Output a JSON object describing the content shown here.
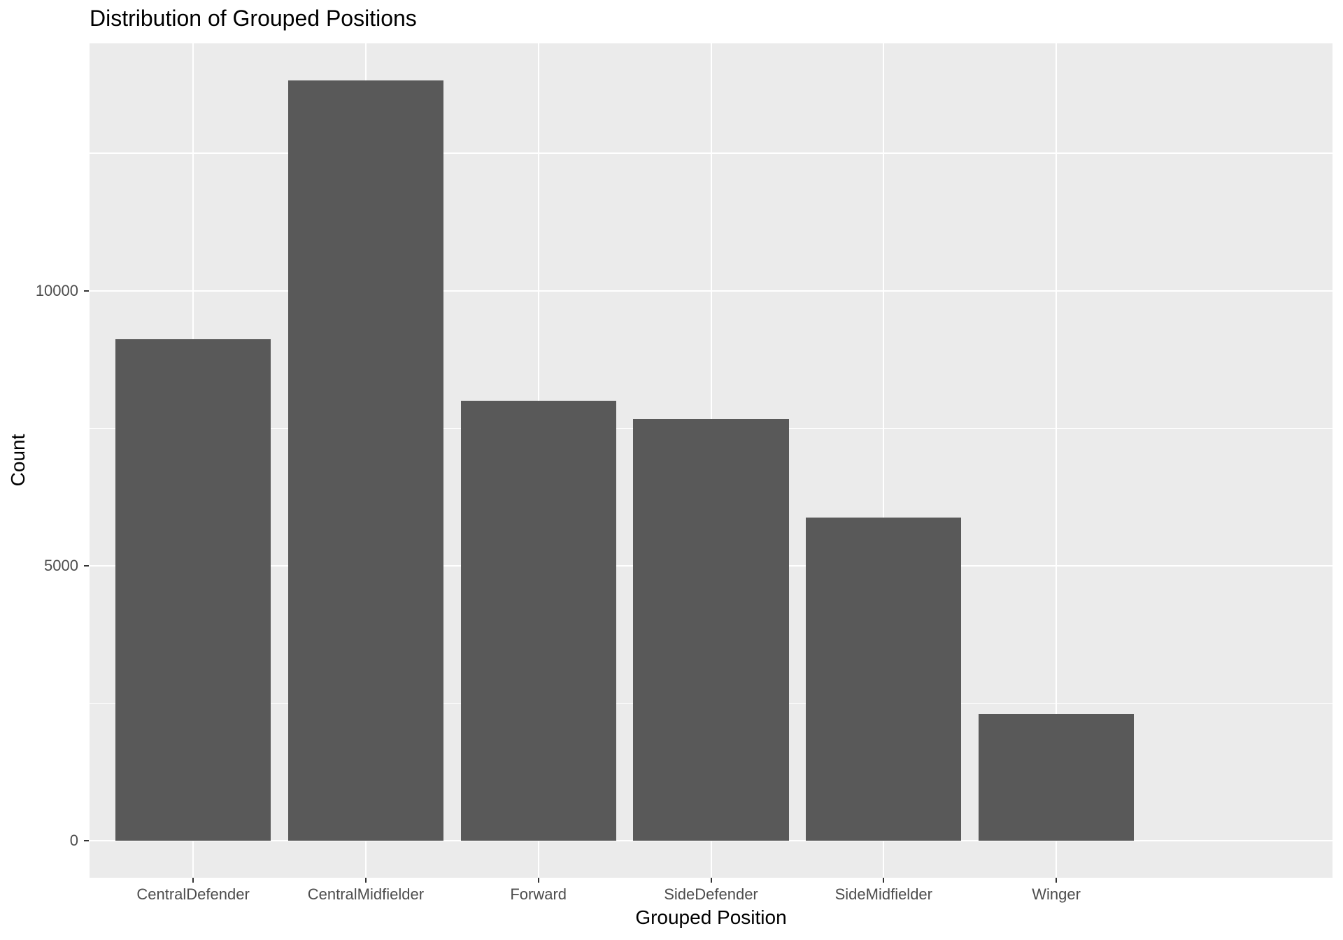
{
  "chart_data": {
    "type": "bar",
    "title": "Distribution of Grouped Positions",
    "xlabel": "Grouped Position",
    "ylabel": "Count",
    "categories": [
      "CentralDefender",
      "CentralMidfielder",
      "Forward",
      "SideDefender",
      "SideMidfielder",
      "Winger"
    ],
    "values": [
      9120,
      13820,
      8000,
      7670,
      5870,
      2300
    ],
    "y_major_ticks": [
      0,
      5000,
      10000
    ],
    "y_tick_labels": [
      "0",
      "5000",
      "10000"
    ],
    "y_minor_gridlines": [
      2500,
      7500,
      12500
    ],
    "ylim": [
      -675,
      14500
    ],
    "grid": true,
    "legend": "none",
    "bar_width_fraction": 0.9,
    "colors": {
      "bar_fill": "#595959",
      "panel_background": "#EBEBEB",
      "gridline": "#FFFFFF",
      "axis_text": "#4D4D4D",
      "tick_mark": "#333333",
      "title_text": "#000000",
      "page_background": "#FFFFFF"
    }
  }
}
